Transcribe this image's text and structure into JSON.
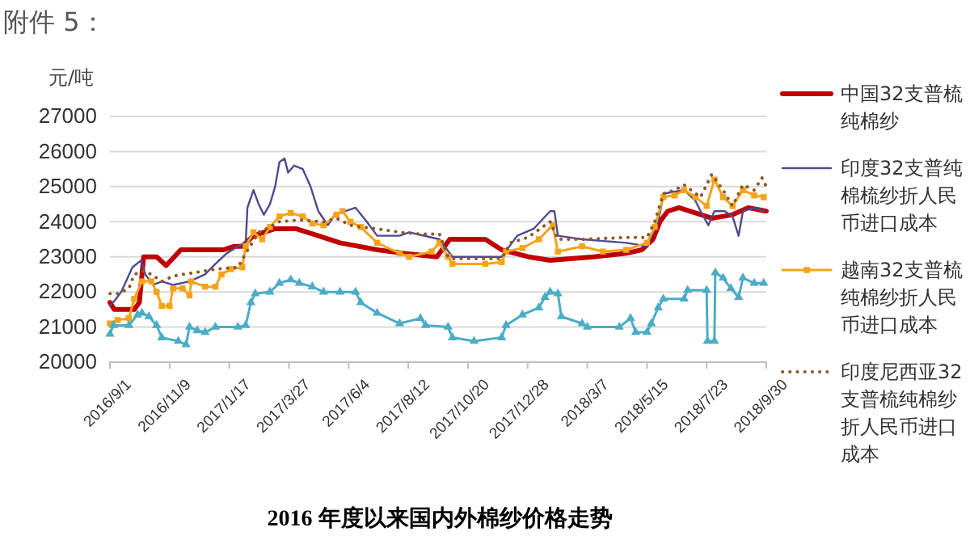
{
  "chart_data": {
    "type": "line",
    "title": "2016 年度以来国内外棉纱价格走势",
    "ylabel": "元/吨",
    "annotations": [
      "附件 5："
    ],
    "xlim": [
      "2016-09-01",
      "2018-09-30"
    ],
    "xticks": [
      {
        "value": "2016-09-01",
        "label": "2016/9/1"
      },
      {
        "value": "2016-11-09",
        "label": "2016/11/9"
      },
      {
        "value": "2017-01-17",
        "label": "2017/1/17"
      },
      {
        "value": "2017-03-27",
        "label": "2017/3/27"
      },
      {
        "value": "2017-06-04",
        "label": "2017/6/4"
      },
      {
        "value": "2017-08-12",
        "label": "2017/8/12"
      },
      {
        "value": "2017-10-20",
        "label": "2017/10/20"
      },
      {
        "value": "2017-12-28",
        "label": "2017/12/28"
      },
      {
        "value": "2018-03-07",
        "label": "2018/3/7"
      },
      {
        "value": "2018-05-15",
        "label": "2018/5/15"
      },
      {
        "value": "2018-07-23",
        "label": "2018/7/23"
      },
      {
        "value": "2018-09-30",
        "label": "2018/9/30"
      }
    ],
    "ylim": [
      20000,
      27000
    ],
    "yticks": [
      20000,
      21000,
      22000,
      23000,
      24000,
      25000,
      26000,
      27000
    ],
    "grid": "y",
    "legend": "right",
    "series": [
      {
        "name": "中国32支普梳纯棉纱",
        "color": "#c00000",
        "x": [
          "2016-09-01",
          "2016-09-06",
          "2016-09-29",
          "2016-10-05",
          "2016-10-10",
          "2016-10-25",
          "2016-11-05",
          "2016-11-22",
          "2017-01-10",
          "2017-01-23",
          "2017-02-01",
          "2017-02-14",
          "2017-03-11",
          "2017-04-04",
          "2017-04-30",
          "2017-05-25",
          "2017-07-07",
          "2017-08-07",
          "2017-09-14",
          "2017-09-29",
          "2017-11-09",
          "2017-11-28",
          "2017-12-29",
          "2018-01-23",
          "2018-03-14",
          "2018-04-21",
          "2018-05-09",
          "2018-05-22",
          "2018-05-30",
          "2018-06-08",
          "2018-06-21",
          "2018-07-29",
          "2018-08-22",
          "2018-09-09",
          "2018-09-30"
        ],
        "values": [
          21700,
          21500,
          21500,
          21700,
          23000,
          23000,
          22750,
          23200,
          23200,
          23300,
          23300,
          23600,
          23800,
          23800,
          23600,
          23400,
          23200,
          23100,
          23000,
          23500,
          23500,
          23200,
          23000,
          22900,
          23000,
          23100,
          23200,
          23500,
          24000,
          24300,
          24400,
          24100,
          24200,
          24400,
          24300
        ]
      },
      {
        "name": "印度32支普纯棉梳纱折人民币进口成本",
        "color": "#4f4a8f",
        "x": [
          "2016-09-01",
          "2016-09-08",
          "2016-09-14",
          "2016-09-27",
          "2016-10-07",
          "2016-10-12",
          "2016-10-21",
          "2016-10-31",
          "2016-11-13",
          "2016-12-02",
          "2016-12-20",
          "2017-01-01",
          "2017-01-14",
          "2017-01-27",
          "2017-02-05",
          "2017-02-07",
          "2017-02-14",
          "2017-02-20",
          "2017-02-26",
          "2017-03-05",
          "2017-03-11",
          "2017-03-16",
          "2017-03-22",
          "2017-03-26",
          "2017-04-02",
          "2017-04-12",
          "2017-04-21",
          "2017-04-30",
          "2017-05-11",
          "2017-05-19",
          "2017-06-12",
          "2017-06-25",
          "2017-07-07",
          "2017-08-02",
          "2017-08-13",
          "2017-09-17",
          "2017-10-02",
          "2017-11-28",
          "2017-12-16",
          "2018-01-04",
          "2018-01-23",
          "2018-01-28",
          "2018-02-01",
          "2018-03-01",
          "2018-03-25",
          "2018-04-21",
          "2018-05-15",
          "2018-05-28",
          "2018-06-01",
          "2018-06-03",
          "2018-06-27",
          "2018-07-10",
          "2018-07-16",
          "2018-07-25",
          "2018-08-01",
          "2018-08-13",
          "2018-08-22",
          "2018-08-29",
          "2018-09-03",
          "2018-09-16",
          "2018-09-27"
        ],
        "values": [
          21600,
          21800,
          22000,
          22700,
          22900,
          22500,
          22200,
          22300,
          22200,
          22300,
          22500,
          22800,
          23100,
          23300,
          23400,
          24400,
          24900,
          24500,
          24200,
          24500,
          25000,
          25700,
          25800,
          25400,
          25600,
          25500,
          25000,
          24300,
          23900,
          24200,
          24400,
          24000,
          23600,
          23600,
          23700,
          23500,
          23000,
          23000,
          23600,
          23800,
          24300,
          24300,
          23600,
          23500,
          23450,
          23400,
          23300,
          24000,
          24500,
          24800,
          24900,
          24600,
          24300,
          23900,
          24300,
          24300,
          24150,
          23600,
          24300,
          24400,
          24300
        ]
      },
      {
        "name": "越南32支普梳纯棉纱折人民币进口成本",
        "color": "#f5a31a",
        "marker": "square",
        "x": [
          "2016-09-01",
          "2016-09-10",
          "2016-09-23",
          "2016-09-29",
          "2016-10-08",
          "2016-10-19",
          "2016-10-25",
          "2016-10-31",
          "2016-11-09",
          "2016-11-13",
          "2016-11-24",
          "2016-12-02",
          "2016-12-04",
          "2016-12-20",
          "2017-01-01",
          "2017-01-08",
          "2017-01-19",
          "2017-02-01",
          "2017-02-05",
          "2017-02-14",
          "2017-02-24",
          "2017-03-05",
          "2017-03-16",
          "2017-03-29",
          "2017-04-12",
          "2017-04-23",
          "2017-05-06",
          "2017-05-21",
          "2017-05-28",
          "2017-06-06",
          "2017-06-18",
          "2017-07-07",
          "2017-08-02",
          "2017-08-13",
          "2017-09-08",
          "2017-09-17",
          "2017-09-27",
          "2017-10-02",
          "2017-11-09",
          "2017-11-28",
          "2017-12-03",
          "2017-12-22",
          "2018-01-10",
          "2018-01-26",
          "2018-02-01",
          "2018-03-01",
          "2018-03-25",
          "2018-04-21",
          "2018-05-15",
          "2018-05-24",
          "2018-06-03",
          "2018-06-16",
          "2018-06-27",
          "2018-07-10",
          "2018-07-23",
          "2018-08-01",
          "2018-08-11",
          "2018-08-22",
          "2018-09-03",
          "2018-09-16",
          "2018-09-27"
        ],
        "values": [
          21100,
          21200,
          21250,
          21800,
          22300,
          22300,
          22000,
          21600,
          21600,
          22100,
          22100,
          21900,
          22300,
          22150,
          22150,
          22500,
          22650,
          22700,
          23300,
          23700,
          23500,
          23850,
          24150,
          24250,
          24150,
          23950,
          23900,
          24200,
          24300,
          24000,
          23850,
          23400,
          23100,
          23000,
          23150,
          23400,
          23000,
          22800,
          22800,
          22850,
          23150,
          23250,
          23500,
          23900,
          23150,
          23300,
          23150,
          23200,
          23400,
          23850,
          24700,
          24750,
          24900,
          24700,
          24450,
          25200,
          24700,
          24450,
          24900,
          24750,
          24700
        ]
      },
      {
        "name": "印度尼西亚32支普梳纯棉纱折人民币进口成本",
        "color": "#8b5a2b",
        "line_style": "dotted",
        "x": [
          "2016-09-01",
          "2016-09-10",
          "2016-09-23",
          "2016-09-29",
          "2016-10-10",
          "2016-10-19",
          "2016-10-31",
          "2016-11-13",
          "2016-11-24",
          "2016-12-08",
          "2017-01-01",
          "2017-01-27",
          "2017-02-05",
          "2017-02-20",
          "2017-03-05",
          "2017-03-16",
          "2017-04-08",
          "2017-05-06",
          "2017-05-21",
          "2017-06-06",
          "2017-06-18",
          "2017-07-07",
          "2017-08-02",
          "2017-08-26",
          "2017-09-17",
          "2017-09-27",
          "2017-10-02",
          "2017-11-09",
          "2017-11-28",
          "2017-12-08",
          "2017-12-28",
          "2018-01-23",
          "2018-02-01",
          "2018-03-01",
          "2018-04-21",
          "2018-05-15",
          "2018-05-24",
          "2018-06-03",
          "2018-06-16",
          "2018-06-27",
          "2018-07-16",
          "2018-07-29",
          "2018-08-11",
          "2018-08-22",
          "2018-09-03",
          "2018-09-16",
          "2018-09-25",
          "2018-09-30"
        ],
        "values": [
          21950,
          21950,
          22100,
          22500,
          22600,
          22500,
          22300,
          22450,
          22500,
          22550,
          22650,
          22700,
          23100,
          23700,
          23850,
          24000,
          24050,
          24000,
          24100,
          23900,
          23850,
          23800,
          23700,
          23650,
          23650,
          23000,
          22950,
          22950,
          22950,
          23400,
          23550,
          24000,
          23500,
          23500,
          23550,
          23550,
          24000,
          24800,
          24900,
          25050,
          24700,
          25350,
          24900,
          24450,
          25050,
          24900,
          25250,
          25000
        ]
      },
      {
        "color": "#4bacc6",
        "marker": "triangle",
        "x": [
          "2016-09-01",
          "2016-09-05",
          "2016-09-23",
          "2016-10-03",
          "2016-10-08",
          "2016-10-16",
          "2016-10-25",
          "2016-10-31",
          "2016-11-19",
          "2016-11-28",
          "2016-12-02",
          "2016-12-11",
          "2016-12-20",
          "2017-01-01",
          "2017-01-27",
          "2017-02-05",
          "2017-02-11",
          "2017-02-16",
          "2017-03-05",
          "2017-03-16",
          "2017-03-29",
          "2017-04-08",
          "2017-04-23",
          "2017-05-06",
          "2017-05-25",
          "2017-06-12",
          "2017-06-18",
          "2017-07-07",
          "2017-08-02",
          "2017-08-26",
          "2017-09-01",
          "2017-09-27",
          "2017-10-02",
          "2017-10-27",
          "2017-11-28",
          "2017-12-03",
          "2017-12-22",
          "2018-01-10",
          "2018-01-17",
          "2018-01-23",
          "2018-02-01",
          "2018-02-05",
          "2018-03-01",
          "2018-03-07",
          "2018-04-13",
          "2018-04-26",
          "2018-05-02",
          "2018-05-15",
          "2018-05-20",
          "2018-05-28",
          "2018-06-03",
          "2018-06-27",
          "2018-07-01",
          "2018-07-23",
          "2018-07-24",
          "2018-08-01",
          "2018-08-02",
          "2018-08-11",
          "2018-08-20",
          "2018-08-29",
          "2018-09-03",
          "2018-09-16",
          "2018-09-27"
        ],
        "values": [
          20800,
          21050,
          21050,
          21350,
          21400,
          21300,
          21050,
          20700,
          20600,
          20500,
          21000,
          20900,
          20850,
          21000,
          21000,
          21050,
          21700,
          21950,
          22000,
          22250,
          22350,
          22250,
          22150,
          22000,
          22000,
          22000,
          21700,
          21400,
          21100,
          21250,
          21050,
          21000,
          20700,
          20600,
          20700,
          21050,
          21350,
          21550,
          21850,
          22000,
          21950,
          21300,
          21100,
          21000,
          21000,
          21250,
          20850,
          20850,
          21100,
          21550,
          21800,
          21800,
          22050,
          22050,
          20600,
          20600,
          22550,
          22400,
          22100,
          21850,
          22400,
          22250,
          22250
        ]
      }
    ]
  }
}
